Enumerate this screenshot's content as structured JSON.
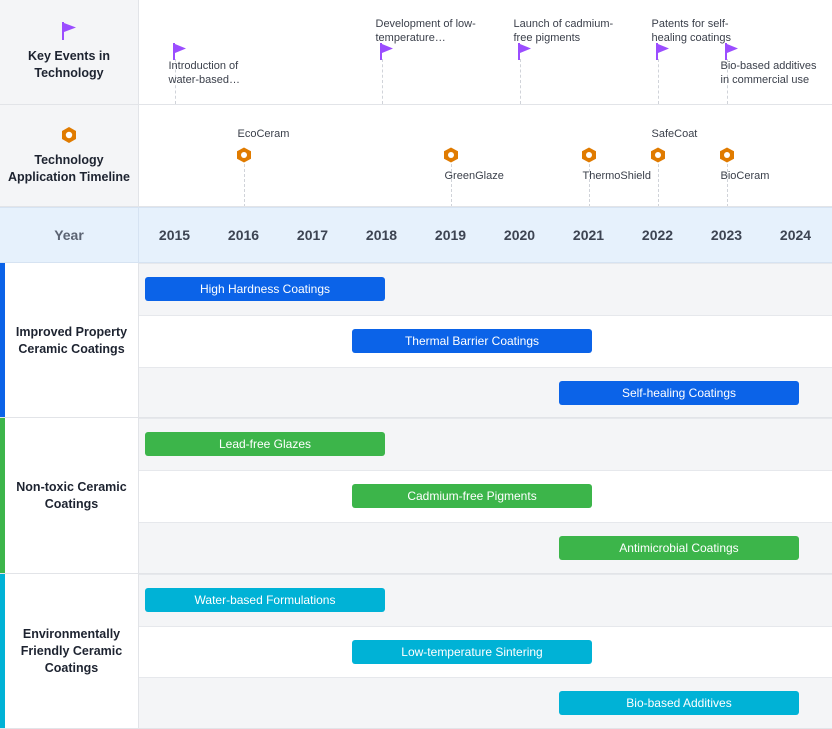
{
  "chart_data": {
    "type": "gantt-timeline",
    "years": [
      "2015",
      "2016",
      "2017",
      "2018",
      "2019",
      "2020",
      "2021",
      "2022",
      "2023",
      "2024"
    ],
    "header_label": "Year",
    "milestone_rows": [
      {
        "title": "Key Events in Technology",
        "icon": "flag-icon",
        "color": "#9b4dff",
        "events": [
          {
            "year": 2015.0,
            "text": "Introduction of\nwater-based…",
            "label_pos": "below"
          },
          {
            "year": 2018.0,
            "text": "Development of low-\ntemperature…",
            "label_pos": "above"
          },
          {
            "year": 2020.0,
            "text": "Launch of cadmium-\nfree pigments",
            "label_pos": "above"
          },
          {
            "year": 2022.0,
            "text": "Patents for self-\nhealing coatings",
            "label_pos": "above"
          },
          {
            "year": 2023.0,
            "text": "Bio-based additives\nin commercial use",
            "label_pos": "below"
          }
        ]
      },
      {
        "title": "Technology Application Timeline",
        "icon": "hexagon-icon",
        "color": "#e07b00",
        "events": [
          {
            "year": 2016.0,
            "text": "EcoCeram",
            "label_pos": "above"
          },
          {
            "year": 2019.0,
            "text": "GreenGlaze",
            "label_pos": "below"
          },
          {
            "year": 2021.0,
            "text": "ThermoShield",
            "label_pos": "below"
          },
          {
            "year": 2022.0,
            "text": "SafeCoat",
            "label_pos": "above"
          },
          {
            "year": 2023.0,
            "text": "BioCeram",
            "label_pos": "below"
          }
        ]
      }
    ],
    "groups": [
      {
        "title": "Improved Property Ceramic Coatings",
        "color": "#0b63e8",
        "bars": [
          {
            "label": "High Hardness Coatings",
            "start": 2015,
            "end": 2018.5
          },
          {
            "label": "Thermal Barrier Coatings",
            "start": 2018,
            "end": 2021.5
          },
          {
            "label": "Self-healing Coatings",
            "start": 2021,
            "end": 2024.5
          }
        ]
      },
      {
        "title": "Non-toxic Ceramic Coatings",
        "color": "#3cb54a",
        "bars": [
          {
            "label": "Lead-free Glazes",
            "start": 2015,
            "end": 2018.5
          },
          {
            "label": "Cadmium-free Pigments",
            "start": 2018,
            "end": 2021.5
          },
          {
            "label": "Antimicrobial Coatings",
            "start": 2021,
            "end": 2024.5
          }
        ]
      },
      {
        "title": "Environmentally Friendly Ceramic Coatings",
        "color": "#00b2d6",
        "bars": [
          {
            "label": "Water-based Formulations",
            "start": 2015,
            "end": 2018.5
          },
          {
            "label": "Low-temperature Sintering",
            "start": 2018,
            "end": 2021.5
          },
          {
            "label": "Bio-based Additives",
            "start": 2021,
            "end": 2024.5
          }
        ]
      }
    ]
  }
}
